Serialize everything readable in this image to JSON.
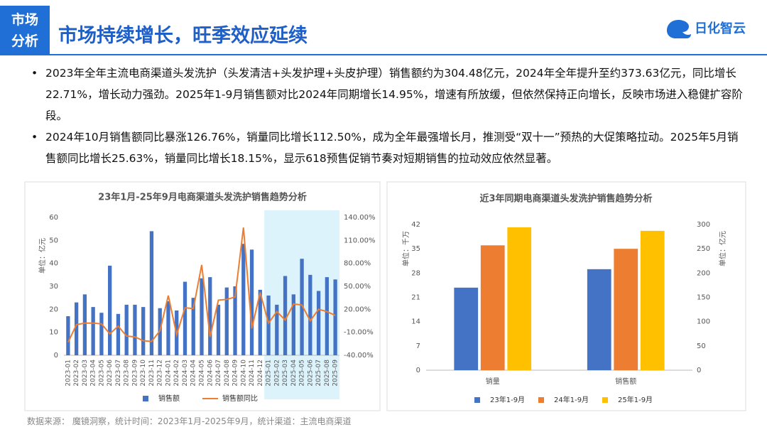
{
  "header": {
    "badge": [
      "市场",
      "分析"
    ],
    "title": "市场持续增长，旺季效应延续",
    "logo": "日化智云"
  },
  "bullets": [
    "2023年全年主流电商渠道头发洗护（头发清洁+头发护理+头皮护理）销售额约为304.48亿元，2024年全年提升至约373.63亿元，同比增长22.71%，增长动力强劲。2025年1-9月销售额对比2024年同期增长14.95%，增速有所放缓，但依然保持正向增长，反映市场进入稳健扩容阶段。",
    "2024年10月销售额同比暴涨126.76%，销量同比增长112.50%，成为全年最强增长月，推测受“双十一”预热的大促策略拉动。2025年5月销售额同比增长25.63%，销量同比增长18.15%，显示618预售促销节奏对短期销售的拉动效应依然显著。"
  ],
  "source": "数据来源：  魔镜洞察，统计时间：2023年1月-2025年9月，统计渠道：主流电商渠道",
  "chart_data": [
    {
      "type": "bar",
      "title": "23年1月-25年9月电商渠道头发洗护销售趋势分析",
      "ylabel": "单位：亿元",
      "categories": [
        "2023-01",
        "2023-02",
        "2023-03",
        "2023-04",
        "2023-05",
        "2023-06",
        "2023-07",
        "2023-08",
        "2023-09",
        "2023-10",
        "2023-11",
        "2023-12",
        "2024-01",
        "2024-02",
        "2024-03",
        "2024-04",
        "2024-05",
        "2024-06",
        "2024-07",
        "2024-08",
        "2024-09",
        "2024-10",
        "2024-11",
        "2024-12",
        "2025-01",
        "2025-02",
        "2025-03",
        "2025-04",
        "2025-05",
        "2025-06",
        "2025-07",
        "2025-08",
        "2025-09"
      ],
      "series": [
        {
          "name": "销售额",
          "color": "#4472c4",
          "values": [
            17,
            23,
            26.5,
            21,
            18.5,
            39,
            18,
            22,
            22,
            21,
            54,
            20.5,
            23.5,
            19.5,
            32,
            25,
            33.5,
            34,
            22,
            29.5,
            30,
            48.5,
            46,
            28.5,
            26,
            22,
            34.5,
            26.5,
            42,
            35,
            28,
            34,
            33
          ]
        },
        {
          "name": "销售额同比",
          "color": "#ed7d31",
          "type": "line",
          "axis": "y2",
          "values": [
            -23,
            0,
            2,
            2,
            1,
            -12,
            -2,
            -15,
            -16,
            -21,
            -22,
            -8,
            38,
            -13,
            22,
            21,
            78,
            -16,
            32,
            33,
            36,
            126.76,
            -5,
            42,
            2,
            17,
            6,
            27,
            25.63,
            5,
            20,
            17,
            12
          ]
        }
      ],
      "ylim": [
        0,
        60
      ],
      "yticks": [
        0,
        10,
        20,
        30,
        40,
        50,
        60
      ],
      "y2lim": [
        -40,
        140
      ],
      "y2ticks": [
        {
          "value": -40,
          "label": "-40.00%"
        },
        {
          "value": -10,
          "label": "-10.00%"
        },
        {
          "value": 20,
          "label": "20.00%"
        },
        {
          "value": 50,
          "label": "50.00%"
        },
        {
          "value": 80,
          "label": "80.00%"
        },
        {
          "value": 110,
          "label": "110.00%"
        },
        {
          "value": 140,
          "label": "140.00%"
        }
      ],
      "grid": false
    },
    {
      "type": "bar",
      "title": "近3年同期电商渠道头发洗护销售趋势分析",
      "ylabel": "单位：千万",
      "y2label": "单位：亿元",
      "categories": [
        "销量",
        "销售额"
      ],
      "category_axis": [
        "y",
        "y2"
      ],
      "series": [
        {
          "name": "23年1-9月",
          "color": "#4472c4",
          "values": [
            23.8,
            208
          ]
        },
        {
          "name": "24年1-9月",
          "color": "#ed7d31",
          "values": [
            36,
            250
          ]
        },
        {
          "name": "25年1-9月",
          "color": "#ffc000",
          "values": [
            41.2,
            287
          ]
        }
      ],
      "ylim": [
        0,
        42
      ],
      "yticks": [
        0,
        7,
        14,
        21,
        28,
        35,
        42
      ],
      "y2lim": [
        0,
        300
      ],
      "y2ticks": [
        0,
        50,
        100,
        150,
        200,
        250,
        300
      ],
      "grid": false
    }
  ]
}
